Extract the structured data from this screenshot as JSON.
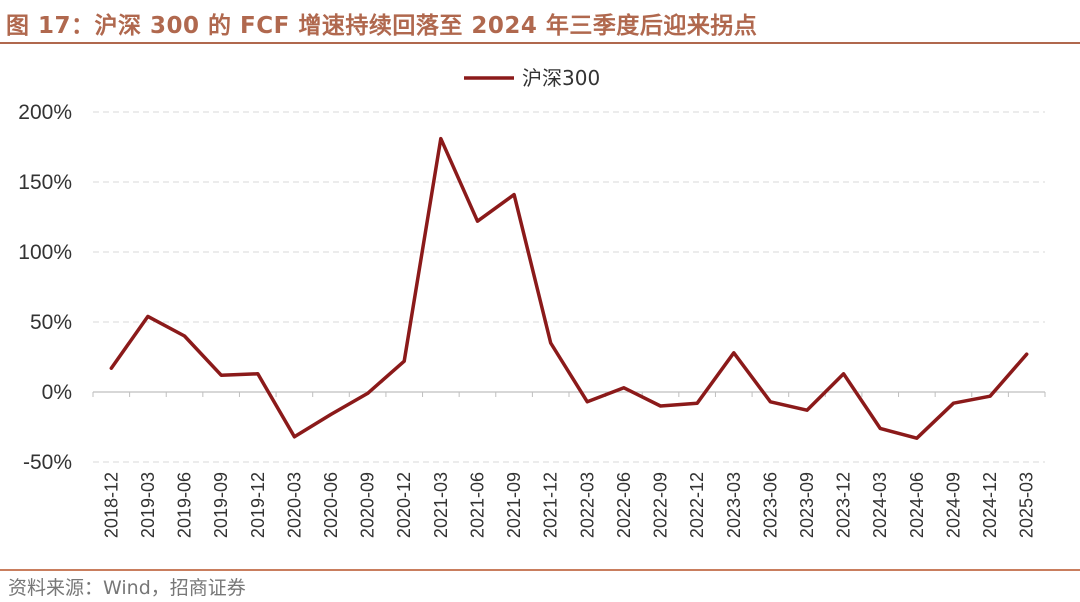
{
  "figure": {
    "title": "图 17：沪深 300 的 FCF 增速持续回落至 2024 年三季度后迎来拐点",
    "source": "资料来源：Wind，招商证券"
  },
  "colors": {
    "accent": "#b0684e",
    "series": "#8b1a1a",
    "grid": "#d9d9d9"
  },
  "chart_data": {
    "type": "line",
    "x": [
      "2018-12",
      "2019-03",
      "2019-06",
      "2019-09",
      "2019-12",
      "2020-03",
      "2020-06",
      "2020-09",
      "2020-12",
      "2021-03",
      "2021-06",
      "2021-09",
      "2021-12",
      "2022-03",
      "2022-06",
      "2022-09",
      "2022-12",
      "2023-03",
      "2023-06",
      "2023-09",
      "2023-12",
      "2024-03",
      "2024-06",
      "2024-09",
      "2024-12",
      "2025-03"
    ],
    "series": [
      {
        "name": "沪深300",
        "values": [
          17,
          54,
          40,
          12,
          13,
          -32,
          -16,
          -1,
          22,
          181,
          122,
          141,
          35,
          -7,
          3,
          -10,
          -8,
          28,
          -7,
          -13,
          13,
          -26,
          -33,
          -8,
          -3,
          27
        ]
      }
    ],
    "y_ticks": [
      "200%",
      "150%",
      "100%",
      "50%",
      "0%",
      "-50%"
    ],
    "y_tick_values": [
      200,
      150,
      100,
      50,
      0,
      -50
    ],
    "ylim": [
      -50,
      200
    ],
    "grid": true,
    "legend": "top-center"
  }
}
